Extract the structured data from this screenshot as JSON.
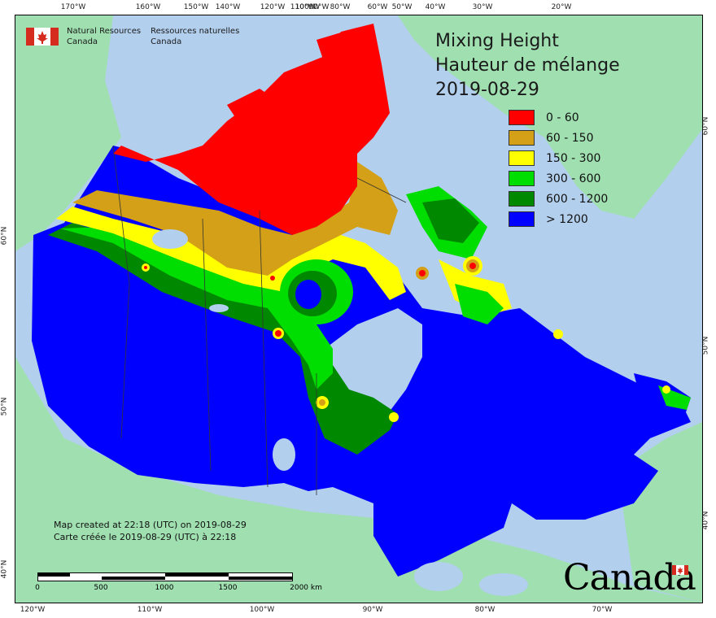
{
  "agency": {
    "name_en_line1": "Natural Resources",
    "name_en_line2": "Canada",
    "name_fr_line1": "Ressources naturelles",
    "name_fr_line2": "Canada"
  },
  "title": {
    "en": "Mixing Height",
    "fr": "Hauteur de mélange",
    "date": "2019-08-29"
  },
  "legend": [
    {
      "label": "0 - 60",
      "color": "#ff0000"
    },
    {
      "label": "60 - 150",
      "color": "#d4a017"
    },
    {
      "label": "150 - 300",
      "color": "#ffff00"
    },
    {
      "label": "300 - 600",
      "color": "#00dd00"
    },
    {
      "label": "600 - 1200",
      "color": "#008800"
    },
    {
      "label": "> 1200",
      "color": "#0000ff"
    }
  ],
  "graticule": {
    "top": [
      "170°W",
      "160°W",
      "150°W",
      "140°W",
      "120°W",
      "110°W",
      "100°W",
      "90°W",
      "80°W",
      "60°W",
      "50°W",
      "40°W",
      "30°W",
      "20°W"
    ],
    "bottom": [
      "120°W",
      "110°W",
      "100°W",
      "90°W",
      "80°W",
      "70°W"
    ],
    "left": [
      "60°N",
      "50°N",
      "40°N"
    ],
    "right": [
      "60°N",
      "50°N",
      "40°N"
    ]
  },
  "stamp": {
    "en": "Map created at 22:18 (UTC) on 2019-08-29",
    "fr": "Carte créée le 2019-08-29 (UTC) à 22:18"
  },
  "scalebar": {
    "labels": [
      "0",
      "500",
      "1000",
      "1500",
      "2000 km"
    ]
  },
  "wordmark": "Canada"
}
